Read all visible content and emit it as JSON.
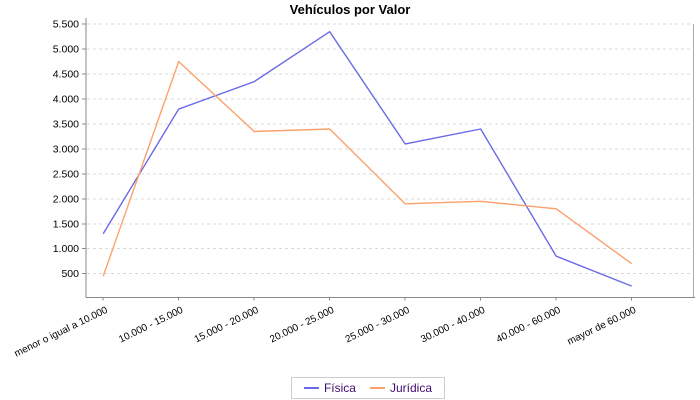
{
  "chart_data": {
    "type": "line",
    "title": "Vehículos por Valor",
    "categories": [
      "menor o igual a 10.000",
      "10.000 - 15.000",
      "15.000 - 20.000",
      "20.000 - 25.000",
      "25.000 - 30.000",
      "30.000 - 40.000",
      "40.000 - 60.000",
      "mayor de 60.000"
    ],
    "series": [
      {
        "name": "Física",
        "color": "#6A6AE6",
        "values": [
          1300,
          3800,
          4350,
          5350,
          3100,
          3400,
          850,
          250
        ]
      },
      {
        "name": "Jurídica",
        "color": "#FBA16C",
        "values": [
          450,
          4750,
          3350,
          3400,
          1900,
          1950,
          1800,
          700
        ]
      }
    ],
    "yticks": [
      500,
      1000,
      1500,
      2000,
      2500,
      3000,
      3500,
      4000,
      4500,
      5000,
      5500
    ],
    "ytick_labels": [
      "500",
      "1.000",
      "1.500",
      "2.000",
      "2.500",
      "3.000",
      "3.500",
      "4.000",
      "4.500",
      "5.000",
      "5.500"
    ],
    "ylim": [
      0,
      5500
    ],
    "xlabel": "",
    "ylabel": "",
    "grid": "horizontal-dashed",
    "legend_position": "bottom-center"
  },
  "colors": {
    "background": "#FFFFFF",
    "gridline": "#D9D9D9",
    "axis": "#8A8A8A",
    "plot_right_border": "#ABABAB",
    "tick_label": "#000000",
    "title_text": "#000000",
    "legend_text": "#410D6E",
    "legend_border": "#CCCCCC"
  }
}
